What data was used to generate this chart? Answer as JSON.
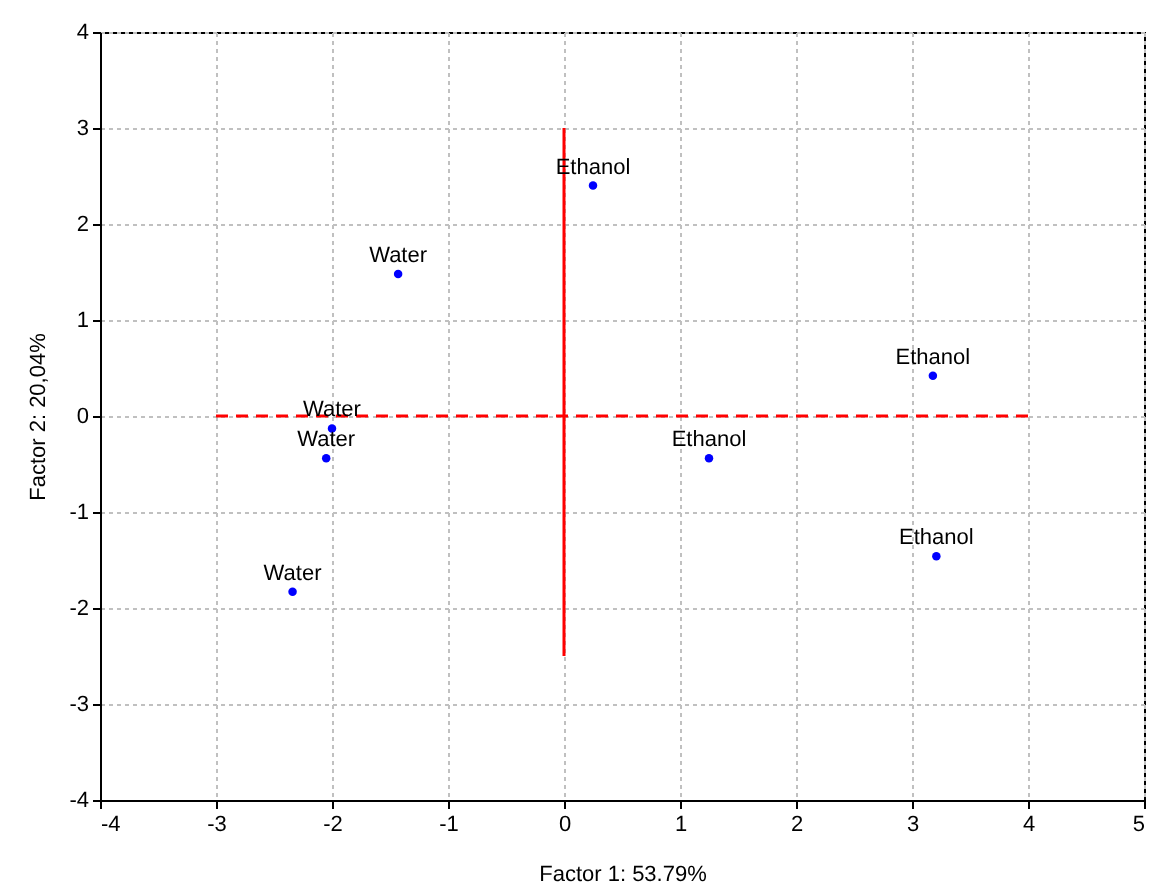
{
  "chart_data": {
    "type": "scatter",
    "xlabel": "Factor 1: 53.79%",
    "ylabel": "Factor 2: 20,04%",
    "xlim": [
      -4,
      5
    ],
    "xticks": [
      -4,
      -3,
      -2,
      -1,
      0,
      1,
      2,
      3,
      4,
      5
    ],
    "ylim": [
      -4,
      4
    ],
    "yticks": [
      -4,
      -3,
      -2,
      -1,
      0,
      1,
      2,
      3,
      4
    ],
    "grid": true,
    "series": [
      {
        "marker": "circle",
        "color": "#0000ff",
        "x": [
          0.25,
          -1.43,
          -2.0,
          -2.05,
          -2.34,
          3.18,
          1.25,
          3.21
        ],
        "values": [
          2.4,
          1.48,
          -0.13,
          -0.44,
          -1.83,
          0.42,
          -0.44,
          -1.46
        ]
      },
      {
        "type": "line",
        "color": "#ff0000",
        "line_style": "dashed",
        "x": [
          -3,
          4
        ],
        "values": [
          0,
          0
        ]
      },
      {
        "type": "line",
        "color": "#ff0000",
        "line_style": "solid",
        "x": [
          0,
          0
        ],
        "values": [
          3,
          -2.5
        ]
      }
    ],
    "annotations": [
      {
        "text": "Ethanol",
        "x": 0.25,
        "y": 2.4
      },
      {
        "text": "Water",
        "x": -1.43,
        "y": 1.48
      },
      {
        "text": "Water",
        "x": -2.0,
        "y": -0.13
      },
      {
        "text": "Water",
        "x": -2.05,
        "y": -0.44
      },
      {
        "text": "Water",
        "x": -2.34,
        "y": -1.83
      },
      {
        "text": "Ethanol",
        "x": 3.18,
        "y": 0.42
      },
      {
        "text": "Ethanol",
        "x": 1.25,
        "y": -0.44
      },
      {
        "text": "Ethanol",
        "x": 3.21,
        "y": -1.46
      }
    ]
  }
}
